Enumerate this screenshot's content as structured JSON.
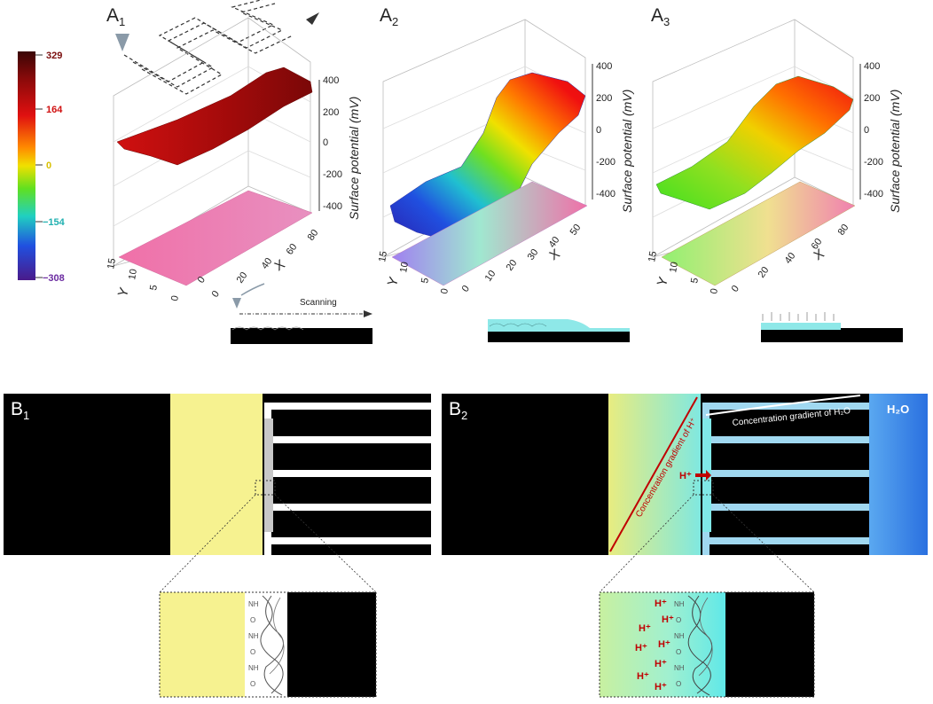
{
  "panels": {
    "a1": {
      "label": "A",
      "sub": "1"
    },
    "a2": {
      "label": "A",
      "sub": "2"
    },
    "a3": {
      "label": "A",
      "sub": "3"
    },
    "b1": {
      "label": "B",
      "sub": "1"
    },
    "b2": {
      "label": "B",
      "sub": "2"
    }
  },
  "colorbar": {
    "ticks": [
      {
        "text": "329",
        "color": "#7a0d0d"
      },
      {
        "text": "164",
        "color": "#d01010"
      },
      {
        "text": "0",
        "color": "#d8c000"
      },
      {
        "text": "−154",
        "color": "#20b0b0"
      },
      {
        "text": "−308",
        "color": "#6a2aa0"
      }
    ]
  },
  "axes": {
    "z_title": "Surface potential (mV)",
    "z_ticks": [
      "400",
      "200",
      "0",
      "-200",
      "-400"
    ],
    "x_letter": "X",
    "y_letter": "Y",
    "x_ticks": [
      "0",
      "20",
      "40",
      "60",
      "80"
    ],
    "y_ticks": [
      "15",
      "10",
      "5",
      "0"
    ],
    "x_ticks_a2": [
      "0",
      "10",
      "20",
      "30",
      "40",
      "50"
    ]
  },
  "annotations": {
    "scanning": "Scanning",
    "gradient_h": "Concentration gradient of H⁺",
    "gradient_h2o": "Concentration gradient of H₂O",
    "h2o_label": "H₂O",
    "hplus": "H⁺",
    "chem_labels": [
      "NH",
      "O",
      "NH",
      "O",
      "NH",
      "O",
      "NH",
      "O"
    ],
    "hplus_zoom": [
      "H⁺",
      "H⁺",
      "H⁺",
      "H⁺",
      "H⁺",
      "H⁺",
      "H⁺",
      "H⁺"
    ]
  }
}
